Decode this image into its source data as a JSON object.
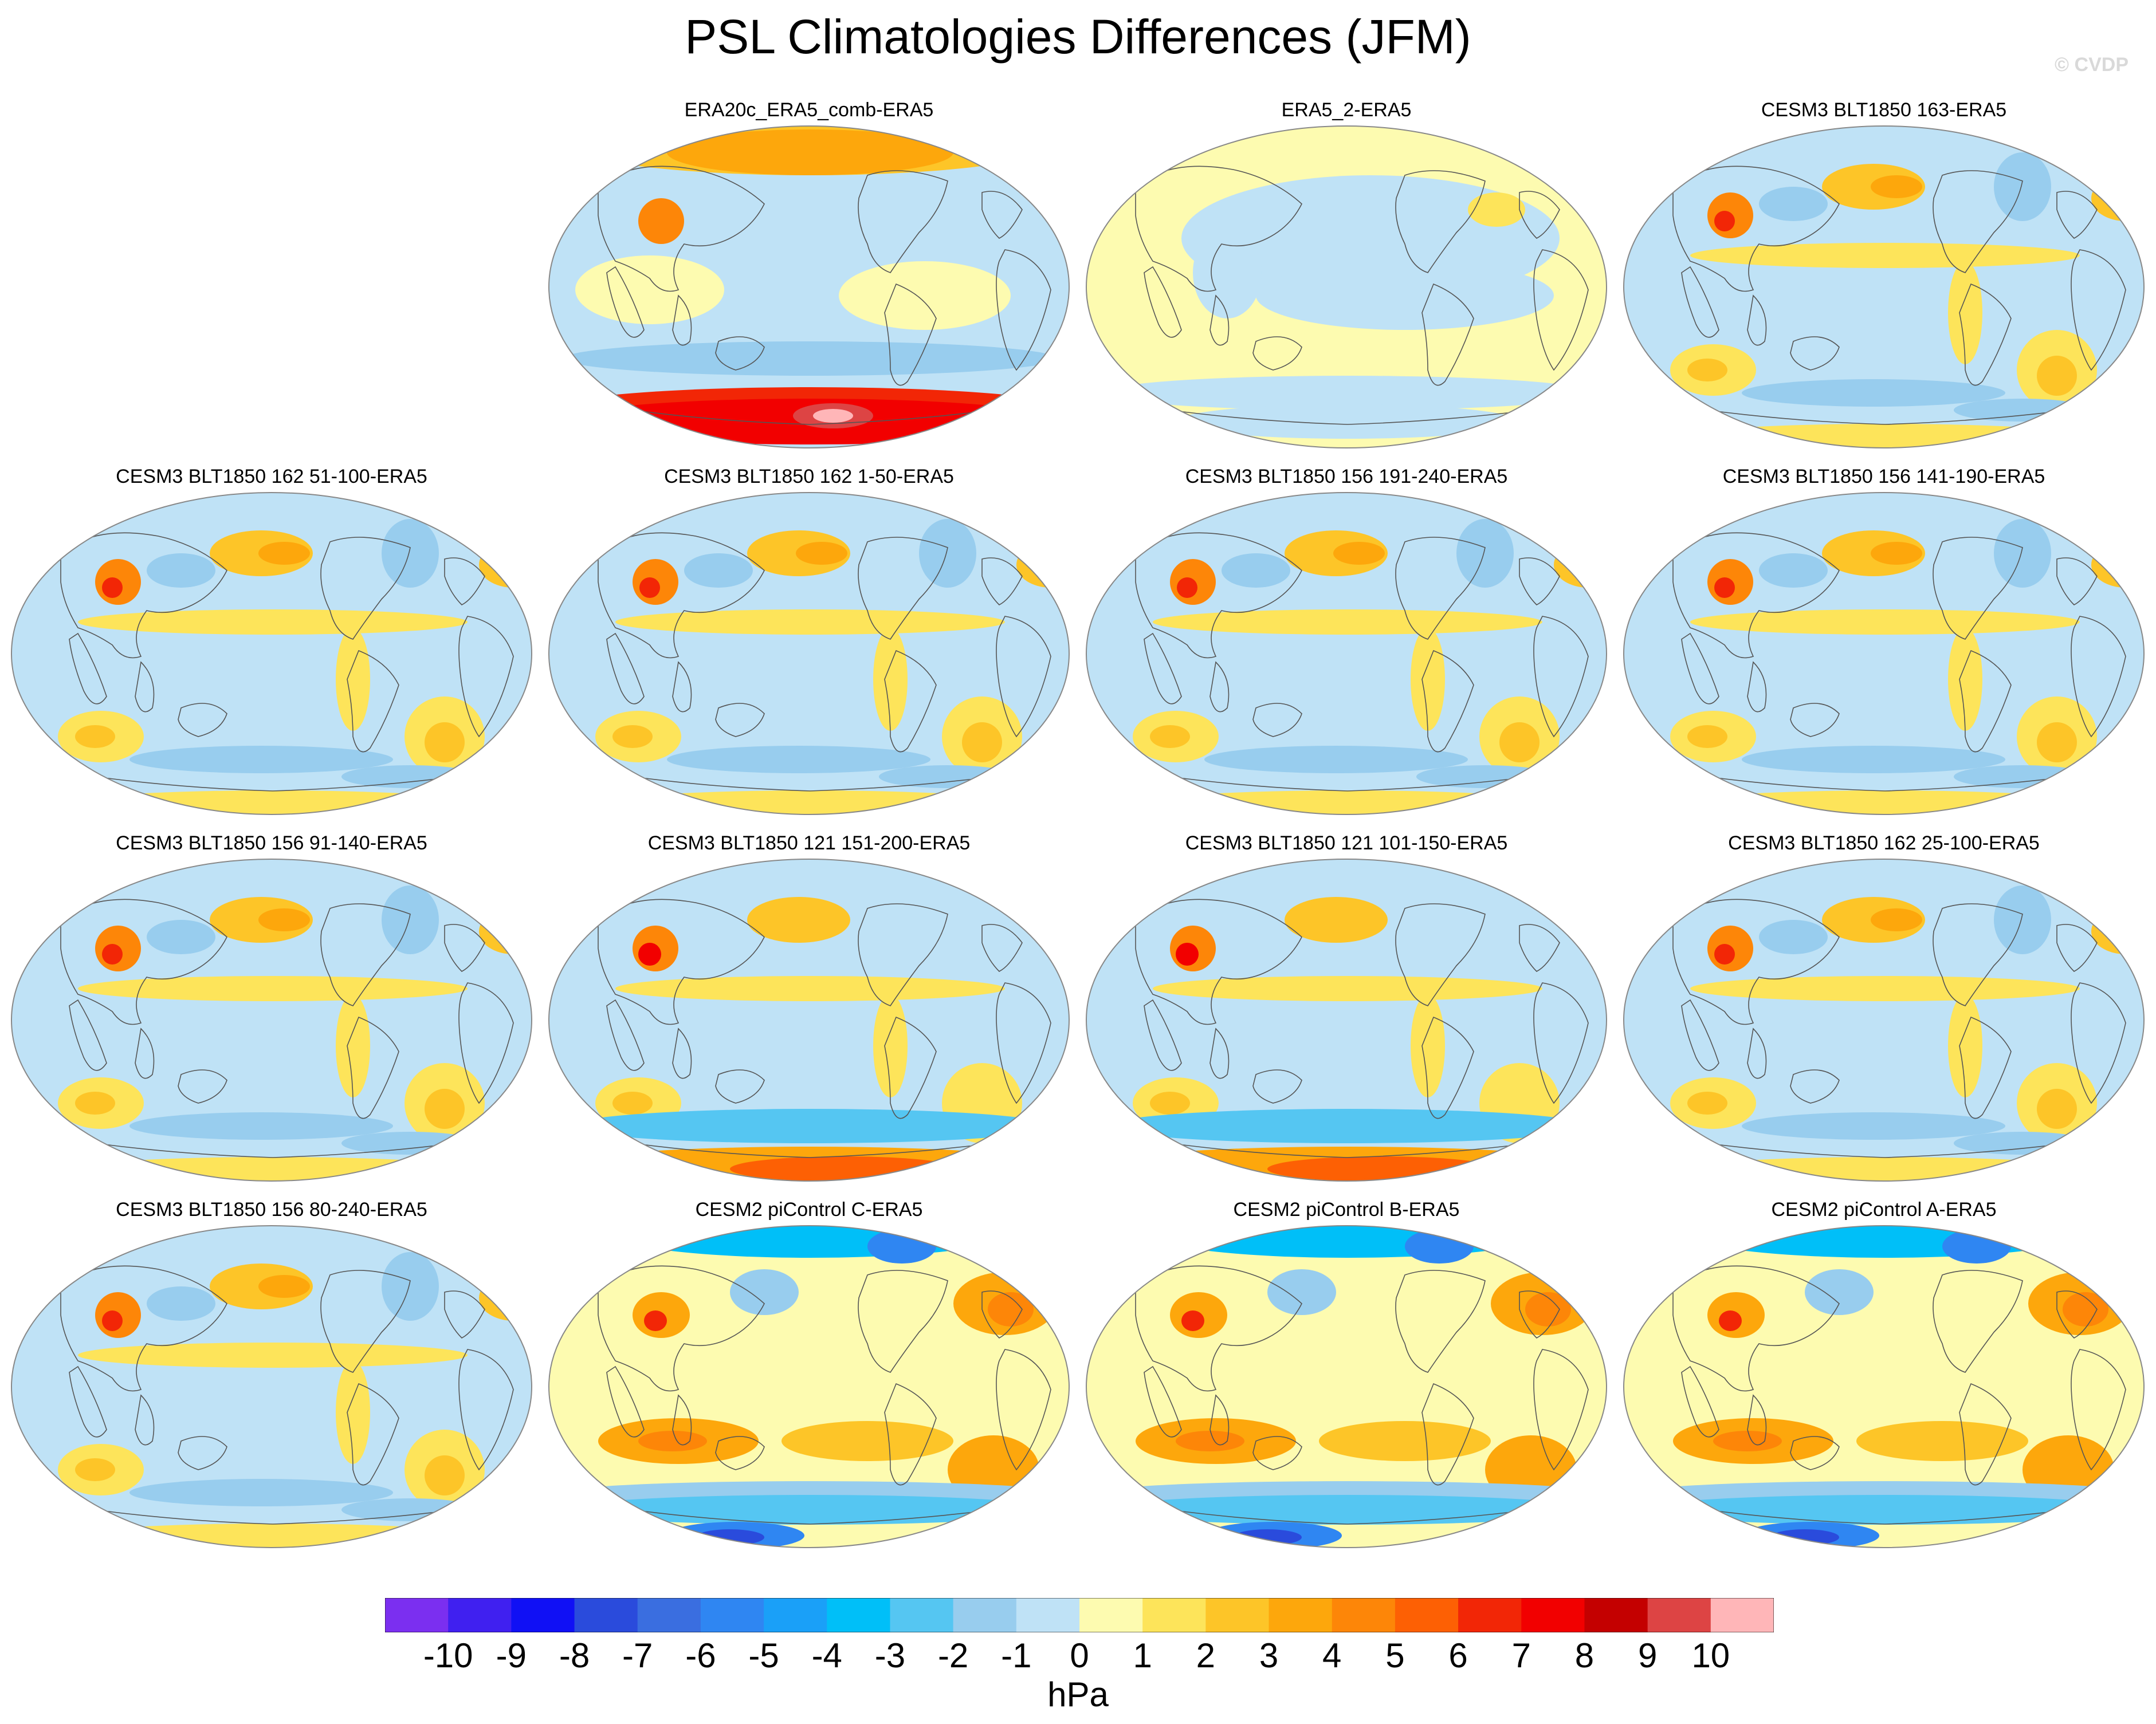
{
  "title": "PSL Climatologies Differences (JFM)",
  "watermark": "© CVDP",
  "chart_data": {
    "type": "heatmap",
    "variable": "PSL",
    "season": "JFM",
    "units": "hPa",
    "colorbar": {
      "ticks": [
        "-10",
        "-9",
        "-8",
        "-7",
        "-6",
        "-5",
        "-4",
        "-3",
        "-2",
        "-1",
        "0",
        "1",
        "2",
        "3",
        "4",
        "5",
        "6",
        "7",
        "8",
        "9",
        "10"
      ],
      "colors": [
        "#7b2ff0",
        "#4020f0",
        "#1010f5",
        "#2a4bdc",
        "#3a6ee0",
        "#2f86f2",
        "#1aa0f8",
        "#00bff8",
        "#55c6f2",
        "#98cdee",
        "#bfe2f6",
        "#fdfbb0",
        "#fde45a",
        "#fdc528",
        "#fda70c",
        "#fd8608",
        "#fd6004",
        "#f22606",
        "#f20000",
        "#c40000",
        "#dd4444",
        "#ffb6b8"
      ]
    },
    "panels": [
      {
        "title": "ERA20c_ERA5_comb-ERA5",
        "base": "#bfe2f6",
        "style": "era20c"
      },
      {
        "title": "ERA5_2-ERA5",
        "base": "#fdfbb0",
        "style": "era5"
      },
      {
        "title": "CESM3 BLT1850 163-ERA5",
        "base": "#bfe2f6",
        "style": "cesm3"
      },
      {
        "title": "CESM3 BLT1850 162 51-100-ERA5",
        "base": "#bfe2f6",
        "style": "cesm3"
      },
      {
        "title": "CESM3 BLT1850 162 1-50-ERA5",
        "base": "#bfe2f6",
        "style": "cesm3"
      },
      {
        "title": "CESM3 BLT1850 156 191-240-ERA5",
        "base": "#bfe2f6",
        "style": "cesm3"
      },
      {
        "title": "CESM3 BLT1850 156 141-190-ERA5",
        "base": "#bfe2f6",
        "style": "cesm3"
      },
      {
        "title": "CESM3 BLT1850 156 91-140-ERA5",
        "base": "#bfe2f6",
        "style": "cesm3"
      },
      {
        "title": "CESM3 BLT1850 121 151-200-ERA5",
        "base": "#bfe2f6",
        "style": "cesm3-hot"
      },
      {
        "title": "CESM3 BLT1850 121 101-150-ERA5",
        "base": "#bfe2f6",
        "style": "cesm3-hot"
      },
      {
        "title": "CESM3 BLT1850 162 25-100-ERA5",
        "base": "#bfe2f6",
        "style": "cesm3"
      },
      {
        "title": "CESM3 BLT1850 156 80-240-ERA5",
        "base": "#bfe2f6",
        "style": "cesm3"
      },
      {
        "title": "CESM2 piControl C-ERA5",
        "base": "#fdfbb0",
        "style": "cesm2"
      },
      {
        "title": "CESM2 piControl B-ERA5",
        "base": "#fdfbb0",
        "style": "cesm2"
      },
      {
        "title": "CESM2 piControl A-ERA5",
        "base": "#fdfbb0",
        "style": "cesm2"
      }
    ]
  }
}
